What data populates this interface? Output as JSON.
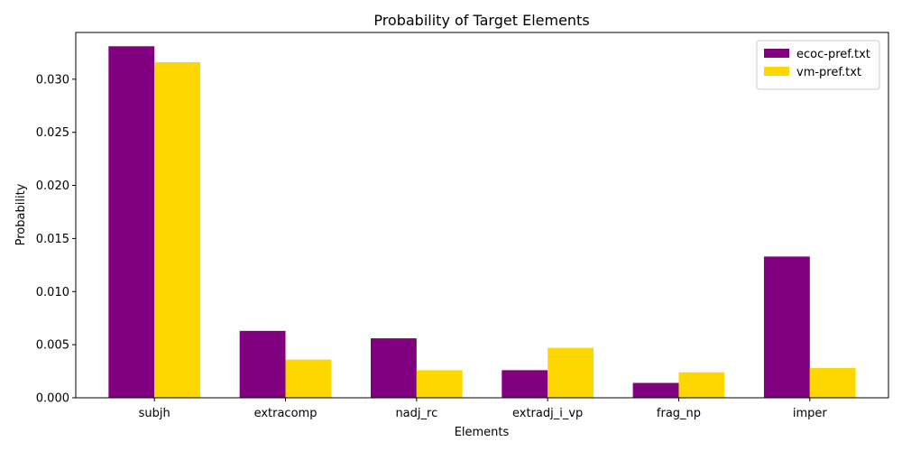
{
  "chart_data": {
    "type": "bar",
    "title": "Probability of Target Elements",
    "xlabel": "Elements",
    "ylabel": "Probability",
    "categories": [
      "subjh",
      "extracomp",
      "nadj_rc",
      "extradj_i_vp",
      "frag_np",
      "imper"
    ],
    "series": [
      {
        "name": "ecoc-pref.txt",
        "color": "#800080",
        "values": [
          0.0331,
          0.0063,
          0.0056,
          0.0026,
          0.0014,
          0.0133
        ]
      },
      {
        "name": "vm-pref.txt",
        "color": "#FFD700",
        "values": [
          0.0316,
          0.0036,
          0.0026,
          0.0047,
          0.0024,
          0.0028
        ]
      }
    ],
    "ylim": [
      0,
      0.0344
    ],
    "yticks": [
      "0.000",
      "0.005",
      "0.010",
      "0.015",
      "0.020",
      "0.025",
      "0.030"
    ],
    "ytick_values": [
      0,
      0.005,
      0.01,
      0.015,
      0.02,
      0.025,
      0.03
    ],
    "grid": false,
    "legend_position": "top-right"
  }
}
